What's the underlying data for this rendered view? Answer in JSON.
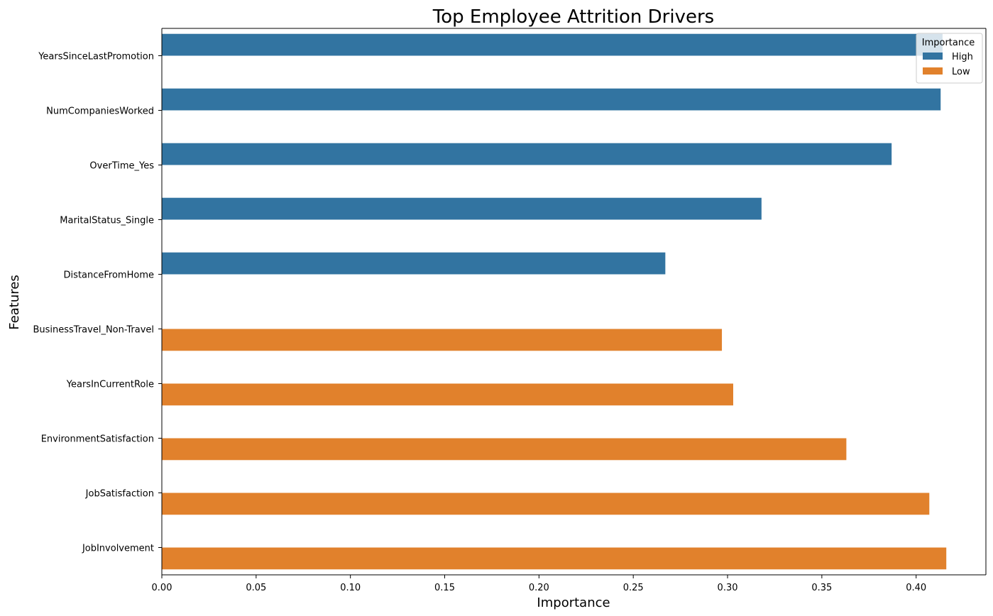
{
  "chart_data": {
    "type": "bar",
    "orientation": "horizontal",
    "title": "Top Employee Attrition Drivers",
    "xlabel": "Importance",
    "ylabel": "Features",
    "xlim": [
      0,
      0.437
    ],
    "xticks": [
      "0.00",
      "0.05",
      "0.10",
      "0.15",
      "0.20",
      "0.25",
      "0.30",
      "0.35",
      "0.40"
    ],
    "grid": false,
    "legend": {
      "title": "Importance",
      "position": "top-right",
      "entries": [
        {
          "label": "High",
          "color": "#3274a1"
        },
        {
          "label": "Low",
          "color": "#e1812c"
        }
      ]
    },
    "categories": [
      "YearsSinceLastPromotion",
      "NumCompaniesWorked",
      "OverTime_Yes",
      "MaritalStatus_Single",
      "DistanceFromHome",
      "BusinessTravel_Non-Travel",
      "YearsInCurrentRole",
      "EnvironmentSatisfaction",
      "JobSatisfaction",
      "JobInvolvement"
    ],
    "series": [
      {
        "name": "High",
        "color": "#3274a1",
        "values": [
          0.414,
          0.413,
          0.387,
          0.318,
          0.267,
          null,
          null,
          null,
          null,
          null
        ]
      },
      {
        "name": "Low",
        "color": "#e1812c",
        "values": [
          null,
          null,
          null,
          null,
          null,
          0.297,
          0.303,
          0.363,
          0.407,
          0.416
        ]
      }
    ]
  }
}
